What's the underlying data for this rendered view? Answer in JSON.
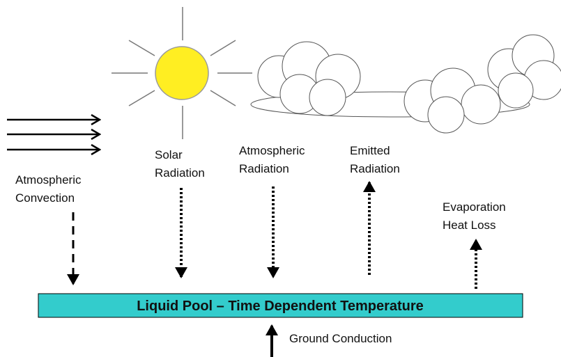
{
  "pool_label": "Liquid Pool – Time Dependent Temperature",
  "labels": [
    {
      "lines": [
        "Atmospheric",
        "Convection"
      ]
    },
    {
      "lines": [
        "Solar",
        "Radiation"
      ]
    },
    {
      "lines": [
        "Atmospheric",
        "Radiation"
      ]
    },
    {
      "lines": [
        "Emitted",
        "Radiation"
      ]
    },
    {
      "lines": [
        "Evaporation",
        "Heat Loss"
      ]
    }
  ],
  "ground_label": "Ground Conduction"
}
